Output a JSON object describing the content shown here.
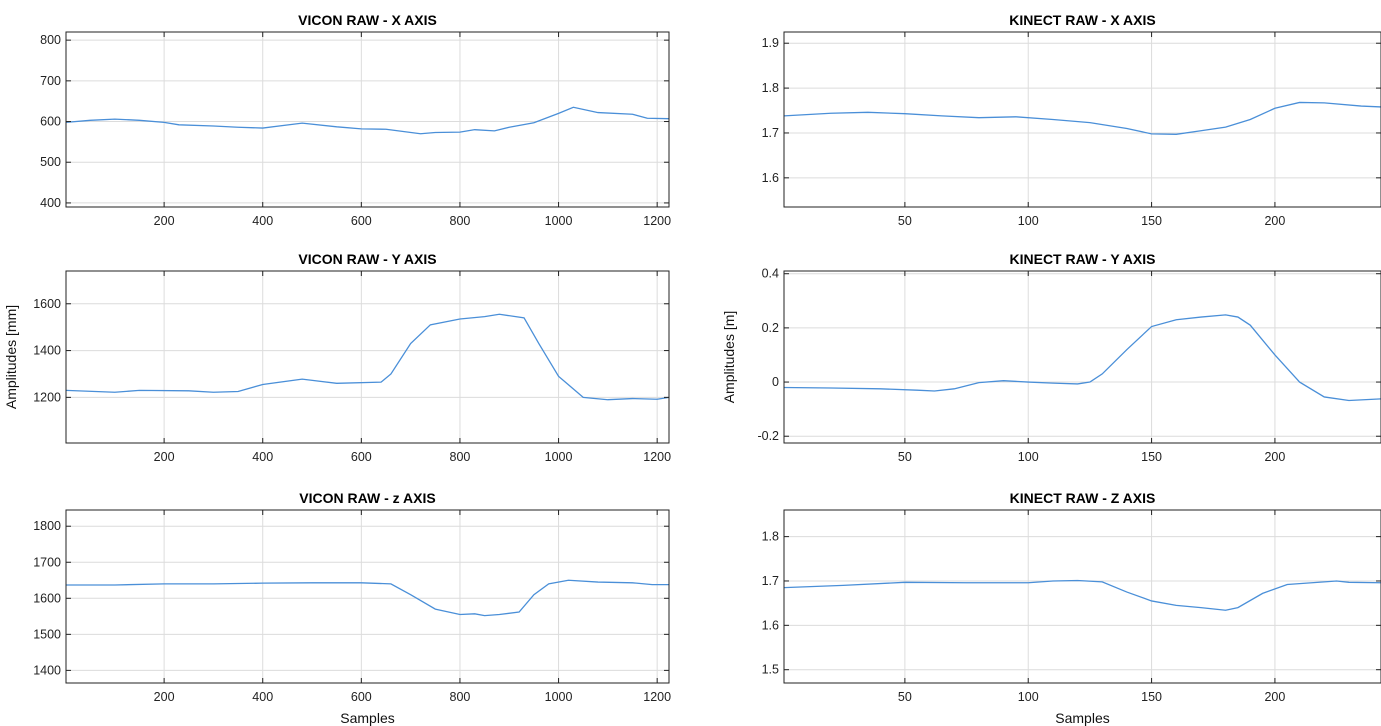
{
  "figure": {
    "colors": {
      "line": "#4a8fd8",
      "grid": "#dcdcdc",
      "frame": "#222222"
    }
  },
  "chart_data": [
    {
      "id": "vicon-x",
      "type": "line",
      "title": "VICON RAW - X AXIS",
      "xlabel": "",
      "ylabel": "",
      "xlim": [
        1,
        1224
      ],
      "ylim": [
        390,
        820
      ],
      "xticks": [
        200,
        400,
        600,
        800,
        1000,
        1200
      ],
      "yticks": [
        400,
        500,
        600,
        700,
        800
      ],
      "grid": true,
      "series": [
        {
          "x": [
            1,
            50,
            100,
            150,
            200,
            230,
            300,
            350,
            400,
            480,
            550,
            600,
            650,
            720,
            750,
            800,
            830,
            870,
            900,
            950,
            1000,
            1030,
            1080,
            1150,
            1180,
            1224
          ],
          "y": [
            598,
            603,
            606,
            603,
            598,
            592,
            589,
            586,
            584,
            596,
            587,
            582,
            581,
            570,
            573,
            574,
            580,
            577,
            586,
            597,
            620,
            635,
            622,
            618,
            608,
            607
          ]
        }
      ]
    },
    {
      "id": "kinect-x",
      "type": "line",
      "title": "KINECT RAW - X AXIS",
      "xlabel": "",
      "ylabel": "",
      "xlim": [
        1,
        243
      ],
      "ylim": [
        1.535,
        1.925
      ],
      "xticks": [
        50,
        100,
        150,
        200
      ],
      "yticks": [
        1.6,
        1.7,
        1.8,
        1.9
      ],
      "grid": true,
      "series": [
        {
          "x": [
            1,
            20,
            35,
            50,
            65,
            80,
            95,
            110,
            125,
            140,
            150,
            160,
            170,
            180,
            190,
            200,
            210,
            220,
            235,
            243
          ],
          "y": [
            1.738,
            1.744,
            1.746,
            1.743,
            1.738,
            1.734,
            1.736,
            1.73,
            1.723,
            1.71,
            1.698,
            1.697,
            1.705,
            1.713,
            1.73,
            1.755,
            1.768,
            1.767,
            1.76,
            1.758
          ]
        }
      ]
    },
    {
      "id": "vicon-y",
      "type": "line",
      "title": "VICON RAW - Y AXIS",
      "xlabel": "",
      "ylabel": "Amplitudes [mm]",
      "xlim": [
        1,
        1224
      ],
      "ylim": [
        1005,
        1740
      ],
      "xticks": [
        200,
        400,
        600,
        800,
        1000,
        1200
      ],
      "yticks": [
        1200,
        1400,
        1600
      ],
      "grid": true,
      "series": [
        {
          "x": [
            1,
            100,
            150,
            250,
            300,
            350,
            400,
            480,
            550,
            640,
            660,
            700,
            740,
            800,
            850,
            880,
            930,
            960,
            1000,
            1050,
            1100,
            1150,
            1200,
            1224
          ],
          "y": [
            1230,
            1222,
            1230,
            1228,
            1222,
            1225,
            1255,
            1278,
            1260,
            1265,
            1300,
            1430,
            1510,
            1535,
            1545,
            1555,
            1540,
            1430,
            1290,
            1200,
            1190,
            1195,
            1192,
            1200
          ]
        }
      ]
    },
    {
      "id": "kinect-y",
      "type": "line",
      "title": "KINECT RAW - Y AXIS",
      "xlabel": "",
      "ylabel": "Amplitudes [m]",
      "xlim": [
        1,
        243
      ],
      "ylim": [
        -0.225,
        0.41
      ],
      "xticks": [
        50,
        100,
        150,
        200
      ],
      "yticks": [
        -0.2,
        0,
        0.2,
        0.4
      ],
      "grid": true,
      "series": [
        {
          "x": [
            1,
            20,
            40,
            55,
            62,
            70,
            80,
            90,
            100,
            110,
            120,
            125,
            130,
            140,
            150,
            160,
            170,
            180,
            185,
            190,
            200,
            210,
            220,
            230,
            243
          ],
          "y": [
            -0.02,
            -0.022,
            -0.025,
            -0.03,
            -0.033,
            -0.025,
            -0.002,
            0.005,
            0,
            -0.004,
            -0.007,
            0.0,
            0.03,
            0.12,
            0.205,
            0.23,
            0.24,
            0.248,
            0.24,
            0.21,
            0.1,
            0.0,
            -0.055,
            -0.068,
            -0.062
          ]
        }
      ]
    },
    {
      "id": "vicon-z",
      "type": "line",
      "title": "VICON RAW - z AXIS",
      "xlabel": "Samples",
      "ylabel": "",
      "xlim": [
        1,
        1224
      ],
      "ylim": [
        1365,
        1845
      ],
      "xticks": [
        200,
        400,
        600,
        800,
        1000,
        1200
      ],
      "yticks": [
        1400,
        1500,
        1600,
        1700,
        1800
      ],
      "grid": true,
      "series": [
        {
          "x": [
            1,
            100,
            200,
            300,
            400,
            500,
            600,
            660,
            700,
            750,
            800,
            830,
            850,
            880,
            920,
            950,
            980,
            1020,
            1080,
            1150,
            1190,
            1224
          ],
          "y": [
            1637,
            1637,
            1640,
            1640,
            1642,
            1643,
            1643,
            1640,
            1610,
            1570,
            1555,
            1557,
            1552,
            1555,
            1562,
            1610,
            1640,
            1650,
            1645,
            1643,
            1638,
            1638
          ]
        }
      ]
    },
    {
      "id": "kinect-z",
      "type": "line",
      "title": "KINECT RAW - Z AXIS",
      "xlabel": "Samples",
      "ylabel": "",
      "xlim": [
        1,
        243
      ],
      "ylim": [
        1.47,
        1.86
      ],
      "xticks": [
        50,
        100,
        150,
        200
      ],
      "yticks": [
        1.5,
        1.6,
        1.7,
        1.8
      ],
      "grid": true,
      "series": [
        {
          "x": [
            1,
            25,
            50,
            75,
            100,
            110,
            120,
            130,
            140,
            150,
            160,
            170,
            180,
            185,
            195,
            205,
            215,
            225,
            230,
            243
          ],
          "y": [
            1.685,
            1.69,
            1.697,
            1.696,
            1.696,
            1.7,
            1.701,
            1.698,
            1.675,
            1.655,
            1.645,
            1.64,
            1.634,
            1.64,
            1.672,
            1.692,
            1.696,
            1.7,
            1.697,
            1.696
          ]
        }
      ]
    }
  ]
}
